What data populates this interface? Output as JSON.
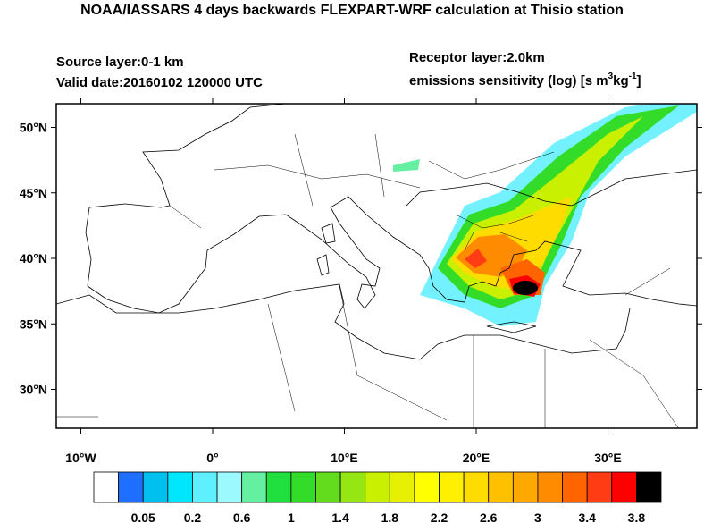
{
  "header": {
    "title": "NOAA/IASSARS 4 days backwards FLEXPART-WRF calculation at Thisio station",
    "source_layer": "Source layer:0-1 km",
    "valid_date": "Valid date:20160102 120000 UTC",
    "receptor_layer": "Receptor layer:2.0km",
    "units": {
      "text": "emissions sensitivity (log) [s m",
      "sup1": "3",
      "mid": "kg",
      "sup2": "-1",
      "end": "]"
    }
  },
  "map": {
    "lat_ticks": [
      {
        "value": 50,
        "label": "50°N"
      },
      {
        "value": 45,
        "label": "45°N"
      },
      {
        "value": 40,
        "label": "40°N"
      },
      {
        "value": 35,
        "label": "35°N"
      },
      {
        "value": 30,
        "label": "30°N"
      }
    ],
    "lon_ticks": [
      {
        "value": -10,
        "label": "10°W"
      },
      {
        "value": 0,
        "label": "0°"
      },
      {
        "value": 10,
        "label": "10°E"
      },
      {
        "value": 20,
        "label": "20°E"
      },
      {
        "value": 30,
        "label": "30°E"
      }
    ]
  },
  "colorbar": {
    "colors": [
      "#ffffff",
      "#1e6eff",
      "#00c0f0",
      "#00e6ff",
      "#5ff0ff",
      "#9cfaff",
      "#64f0a0",
      "#20e040",
      "#32dc28",
      "#64dc1e",
      "#96e614",
      "#c8f000",
      "#e6f000",
      "#ffff00",
      "#fff000",
      "#ffdc00",
      "#ffc000",
      "#ffa800",
      "#ff8c00",
      "#ff6400",
      "#ff3c14",
      "#ff0000",
      "#000000"
    ],
    "labels": [
      0.05,
      0.2,
      0.6,
      1,
      1.4,
      1.8,
      2.2,
      2.6,
      3,
      3.4,
      3.8
    ]
  }
}
